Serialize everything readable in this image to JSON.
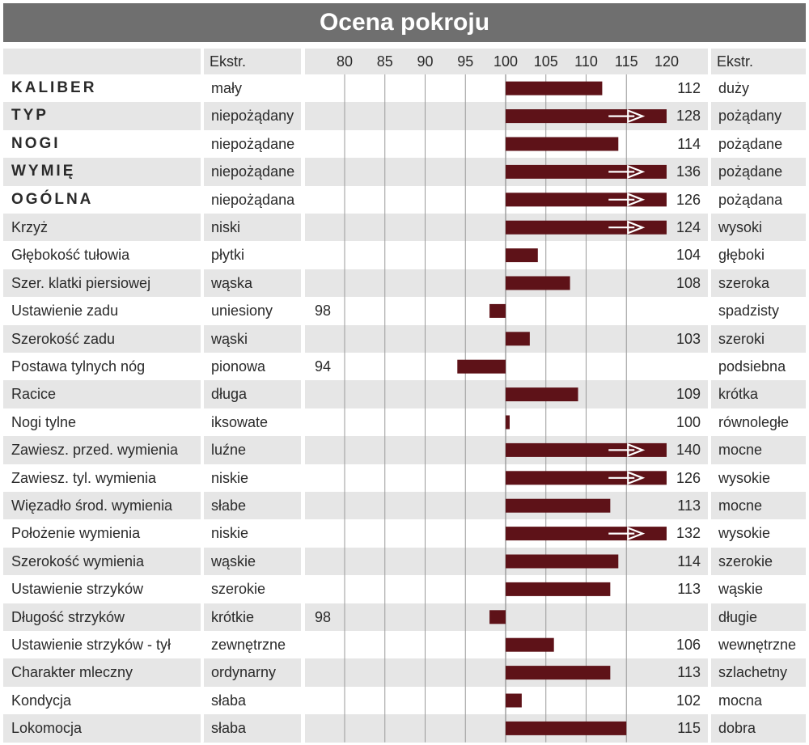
{
  "title": "Ocena pokroju",
  "header": {
    "extr_left": "Ekstr.",
    "extr_right": "Ekstr."
  },
  "colors": {
    "bar": "#5e1218",
    "title_bg": "#6f6f6f",
    "row_alt": "#e6e6e6",
    "grid": "#9a9a9a"
  },
  "chart_data": {
    "type": "bar",
    "orientation": "horizontal",
    "baseline": 100,
    "xlim": [
      80,
      120
    ],
    "ticks": [
      80,
      85,
      90,
      95,
      100,
      105,
      110,
      115,
      120
    ],
    "rows": [
      {
        "name": "KALIBER",
        "low": "mały",
        "value": 112,
        "label": "112",
        "high": "duży",
        "bold": true,
        "arrow": false
      },
      {
        "name": "TYP",
        "low": "niepożądany",
        "value": 128,
        "label": "128",
        "high": "pożądany",
        "bold": true,
        "arrow": true
      },
      {
        "name": "NOGI",
        "low": "niepożądane",
        "value": 114,
        "label": "114",
        "high": "pożądane",
        "bold": true,
        "arrow": false
      },
      {
        "name": "WYMIĘ",
        "low": "niepożądane",
        "value": 136,
        "label": "136",
        "high": "pożądane",
        "bold": true,
        "arrow": true
      },
      {
        "name": "OGÓLNA",
        "low": "niepożądana",
        "value": 126,
        "label": "126",
        "high": "pożądana",
        "bold": true,
        "arrow": true
      },
      {
        "name": "Krzyż",
        "low": "niski",
        "value": 124,
        "label": "124",
        "high": "wysoki",
        "bold": false,
        "arrow": true
      },
      {
        "name": "Głębokość tułowia",
        "low": "płytki",
        "value": 104,
        "label": "104",
        "high": "głęboki",
        "bold": false,
        "arrow": false
      },
      {
        "name": "Szer. klatki piersiowej",
        "low": "wąska",
        "value": 108,
        "label": "108",
        "high": "szeroka",
        "bold": false,
        "arrow": false
      },
      {
        "name": "Ustawienie zadu",
        "low": "uniesiony",
        "value": 98,
        "label": "98",
        "high": "spadzisty",
        "bold": false,
        "arrow": false
      },
      {
        "name": "Szerokość zadu",
        "low": "wąski",
        "value": 103,
        "label": "103",
        "high": "szeroki",
        "bold": false,
        "arrow": false
      },
      {
        "name": "Postawa tylnych nóg",
        "low": "pionowa",
        "value": 94,
        "label": "94",
        "high": "podsiebna",
        "bold": false,
        "arrow": false
      },
      {
        "name": "Racice",
        "low": "długa",
        "value": 109,
        "label": "109",
        "high": "krótka",
        "bold": false,
        "arrow": false
      },
      {
        "name": "Nogi tylne",
        "low": "iksowate",
        "value": 100,
        "label": "100",
        "high": "równoległe",
        "bold": false,
        "arrow": false
      },
      {
        "name": "Zawiesz. przed. wymienia",
        "low": "luźne",
        "value": 140,
        "label": "140",
        "high": "mocne",
        "bold": false,
        "arrow": true
      },
      {
        "name": "Zawiesz. tyl. wymienia",
        "low": "niskie",
        "value": 126,
        "label": "126",
        "high": "wysokie",
        "bold": false,
        "arrow": true
      },
      {
        "name": "Więzadło środ. wymienia",
        "low": "słabe",
        "value": 113,
        "label": "113",
        "high": "mocne",
        "bold": false,
        "arrow": false
      },
      {
        "name": "Położenie wymienia",
        "low": "niskie",
        "value": 132,
        "label": "132",
        "high": "wysokie",
        "bold": false,
        "arrow": true
      },
      {
        "name": "Szerokość wymienia",
        "low": "wąskie",
        "value": 114,
        "label": "114",
        "high": "szerokie",
        "bold": false,
        "arrow": false
      },
      {
        "name": "Ustawienie strzyków",
        "low": "szerokie",
        "value": 113,
        "label": "113",
        "high": "wąskie",
        "bold": false,
        "arrow": false
      },
      {
        "name": "Długość strzyków",
        "low": "krótkie",
        "value": 98,
        "label": "98",
        "high": "długie",
        "bold": false,
        "arrow": false
      },
      {
        "name": "Ustawienie strzyków - tył",
        "low": "zewnętrzne",
        "value": 106,
        "label": "106",
        "high": "wewnętrzne",
        "bold": false,
        "arrow": false
      },
      {
        "name": "Charakter mleczny",
        "low": "ordynarny",
        "value": 113,
        "label": "113",
        "high": "szlachetny",
        "bold": false,
        "arrow": false
      },
      {
        "name": "Kondycja",
        "low": "słaba",
        "value": 102,
        "label": "102",
        "high": "mocna",
        "bold": false,
        "arrow": false
      },
      {
        "name": "Lokomocja",
        "low": "słaba",
        "value": 115,
        "label": "115",
        "high": "dobra",
        "bold": false,
        "arrow": false
      }
    ]
  }
}
